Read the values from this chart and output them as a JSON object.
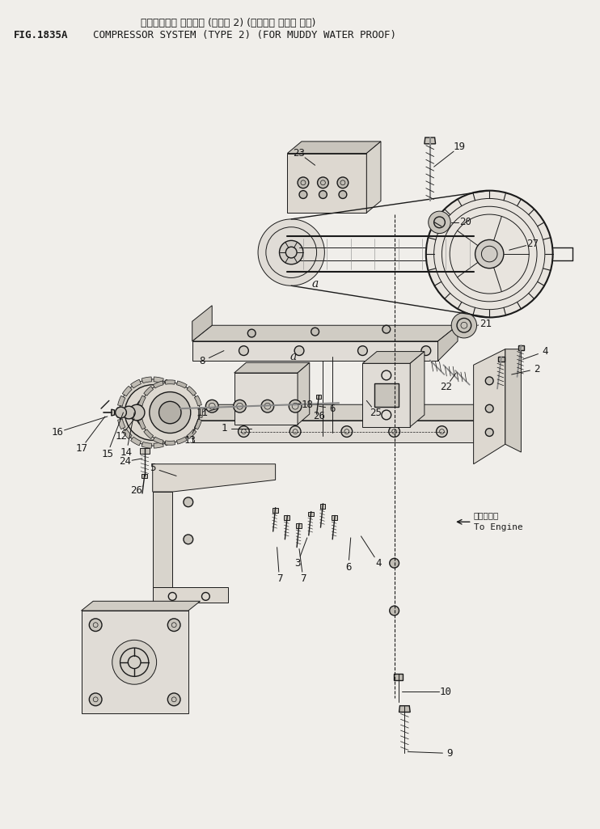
{
  "title_line1_jp": "コンプレッサ システム (タイプ 2) (ドロミズ ボウシ ヨウ)",
  "title_line2_en": "COMPRESSOR SYSTEM (TYPE 2) (FOR MUDDY WATER PROOF)",
  "fig_label": "FIG.1835A",
  "bg_color": "#f0eeea",
  "line_color": "#1a1a1a",
  "text_color": "#1a1a1a",
  "fig_width": 7.42,
  "fig_height": 10.25,
  "dpi": 100
}
